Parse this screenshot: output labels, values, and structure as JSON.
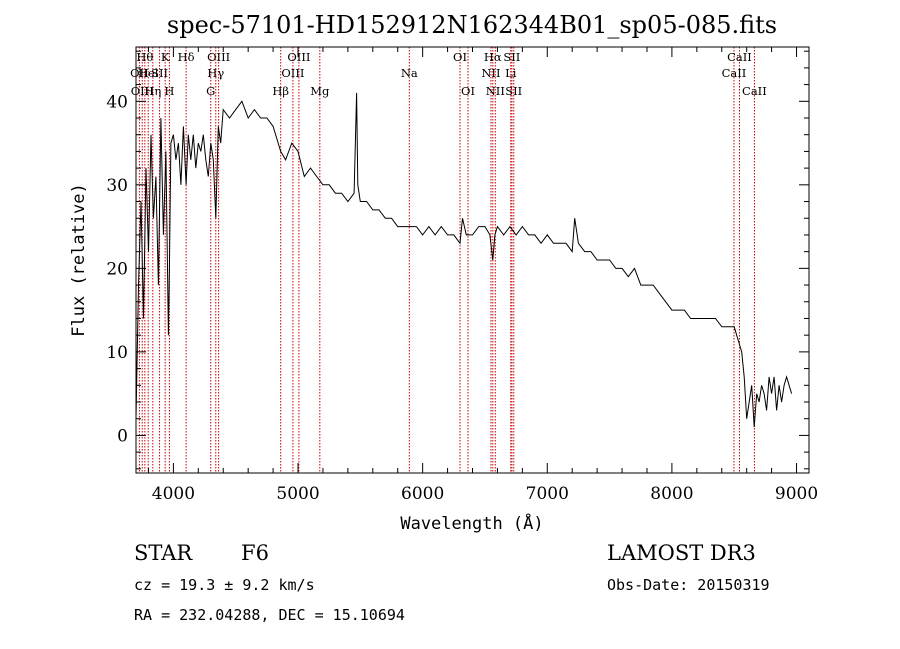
{
  "chart_data": {
    "type": "line",
    "title": "spec-57101-HD152912N162344B01_sp05-085.fits",
    "xlabel": "Wavelength (Å)",
    "ylabel": "Flux (relative)",
    "xlim": [
      3700,
      9100
    ],
    "ylim": [
      -4.5,
      46.5
    ],
    "x_ticks": [
      4000,
      5000,
      6000,
      7000,
      8000,
      9000
    ],
    "y_ticks": [
      0,
      10,
      20,
      30,
      40
    ],
    "grid": false,
    "line_color": "#000000",
    "marker_color": "#cc0000",
    "series": [
      {
        "x": [
          3700,
          3720,
          3740,
          3760,
          3780,
          3800,
          3820,
          3840,
          3860,
          3880,
          3900,
          3920,
          3940,
          3960,
          3968,
          3980,
          4000,
          4020,
          4040,
          4060,
          4080,
          4102,
          4120,
          4140,
          4160,
          4180,
          4200,
          4220,
          4240,
          4260,
          4280,
          4300,
          4320,
          4340,
          4360,
          4380,
          4400,
          4450,
          4500,
          4550,
          4600,
          4650,
          4700,
          4750,
          4800,
          4861,
          4900,
          4950,
          5000,
          5050,
          5100,
          5150,
          5200,
          5250,
          5300,
          5350,
          5400,
          5450,
          5470,
          5480,
          5500,
          5550,
          5600,
          5650,
          5700,
          5750,
          5800,
          5850,
          5900,
          5950,
          6000,
          6050,
          6100,
          6150,
          6200,
          6250,
          6300,
          6320,
          6350,
          6400,
          6450,
          6500,
          6540,
          6563,
          6580,
          6600,
          6650,
          6700,
          6750,
          6800,
          6850,
          6900,
          6950,
          7000,
          7050,
          7100,
          7150,
          7200,
          7220,
          7250,
          7300,
          7350,
          7400,
          7450,
          7500,
          7550,
          7600,
          7650,
          7700,
          7750,
          7800,
          7850,
          7900,
          7950,
          8000,
          8050,
          8100,
          8150,
          8200,
          8250,
          8300,
          8350,
          8400,
          8450,
          8500,
          8520,
          8540,
          8560,
          8580,
          8600,
          8620,
          8640,
          8660,
          8680,
          8700,
          8720,
          8740,
          8760,
          8780,
          8800,
          8820,
          8840,
          8860,
          8880,
          8900,
          8920,
          8940,
          8960
        ],
        "values": [
          2,
          18,
          28,
          14,
          32,
          22,
          36,
          26,
          31,
          18,
          38,
          24,
          34,
          12,
          20,
          35,
          36,
          33,
          35,
          30,
          37,
          30,
          36,
          33,
          36,
          32,
          35,
          34,
          36,
          33,
          31,
          35,
          33,
          26,
          37,
          35,
          39,
          38,
          39,
          40,
          38,
          39,
          38,
          38,
          37,
          34,
          33,
          35,
          34,
          31,
          32,
          31,
          30,
          30,
          29,
          29,
          28,
          29,
          41,
          30,
          28,
          28,
          27,
          27,
          26,
          26,
          25,
          25,
          25,
          25,
          24,
          25,
          24,
          25,
          24,
          24,
          23,
          26,
          24,
          24,
          25,
          25,
          24,
          21,
          24,
          25,
          24,
          25,
          24,
          25,
          24,
          24,
          23,
          24,
          23,
          23,
          23,
          22,
          26,
          23,
          22,
          22,
          21,
          21,
          21,
          20,
          20,
          19,
          20,
          18,
          18,
          18,
          17,
          16,
          15,
          15,
          15,
          14,
          14,
          14,
          14,
          14,
          13,
          13,
          13,
          12,
          11,
          10,
          7,
          2,
          4,
          6,
          1,
          5,
          4,
          6,
          5,
          3,
          7,
          5,
          7,
          3,
          6,
          4,
          6,
          7,
          6,
          5
        ]
      }
    ],
    "lines": [
      {
        "wl": 3727,
        "label": "OII",
        "row": 1
      },
      {
        "wl": 3750,
        "label": "OIII",
        "row": 2
      },
      {
        "wl": 3771,
        "label": "Hθ",
        "row": 0
      },
      {
        "wl": 3798,
        "label": "Hel",
        "row": 1
      },
      {
        "wl": 3835,
        "label": "Hη",
        "row": 2
      },
      {
        "wl": 3889,
        "label": "SII",
        "row": 1
      },
      {
        "wl": 3934,
        "label": "K",
        "row": 0
      },
      {
        "wl": 3968,
        "label": "H",
        "row": 2
      },
      {
        "wl": 4102,
        "label": "Hδ",
        "row": 0
      },
      {
        "wl": 4300,
        "label": "G",
        "row": 2
      },
      {
        "wl": 4340,
        "label": "Hγ",
        "row": 1
      },
      {
        "wl": 4363,
        "label": "OIII",
        "row": 0
      },
      {
        "wl": 4861,
        "label": "Hβ",
        "row": 2
      },
      {
        "wl": 4959,
        "label": "OIII",
        "row": 1
      },
      {
        "wl": 5007,
        "label": "OIII",
        "row": 0
      },
      {
        "wl": 5175,
        "label": "Mg",
        "row": 2
      },
      {
        "wl": 5893,
        "label": "Na",
        "row": 1
      },
      {
        "wl": 6300,
        "label": "OI",
        "row": 0
      },
      {
        "wl": 6364,
        "label": "OI",
        "row": 2
      },
      {
        "wl": 6548,
        "label": "NII",
        "row": 1
      },
      {
        "wl": 6563,
        "label": "Hα",
        "row": 0
      },
      {
        "wl": 6583,
        "label": "NII",
        "row": 2
      },
      {
        "wl": 6707,
        "label": "Li",
        "row": 1
      },
      {
        "wl": 6716,
        "label": "SII",
        "row": 0
      },
      {
        "wl": 6731,
        "label": "SII",
        "row": 2
      },
      {
        "wl": 8498,
        "label": "CaII",
        "row": 1
      },
      {
        "wl": 8542,
        "label": "CaII",
        "row": 0
      },
      {
        "wl": 8662,
        "label": "CaII",
        "row": 2
      }
    ]
  },
  "info": {
    "object_class": "STAR",
    "subclass": "F6",
    "survey": "LAMOST DR3",
    "cz": "cz = 19.3 ± 9.2 km/s",
    "obs_date": "Obs-Date: 20150319",
    "coords": "RA = 232.04288, DEC =  15.10694"
  }
}
